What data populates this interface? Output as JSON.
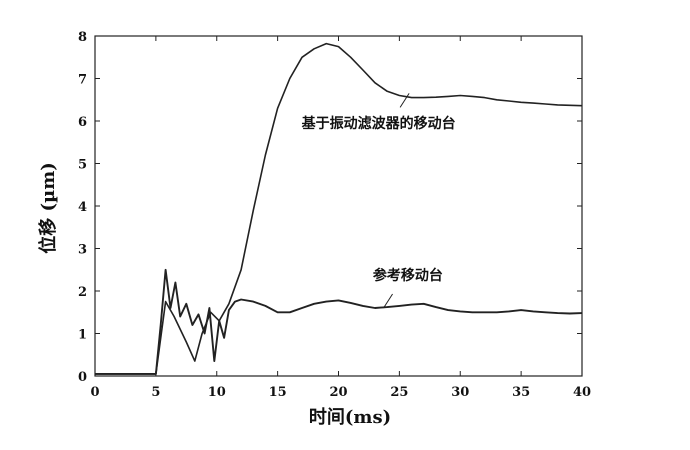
{
  "chart_data": {
    "type": "line",
    "title": "",
    "xlabel": "时间(ms)",
    "ylabel": "位移 (µm)",
    "xlim": [
      0,
      40
    ],
    "ylim": [
      0,
      8
    ],
    "xticks": [
      0,
      5,
      10,
      15,
      20,
      25,
      30,
      35,
      40
    ],
    "yticks": [
      0,
      1,
      2,
      3,
      4,
      5,
      6,
      7,
      8
    ],
    "grid": false,
    "legend": "none",
    "line_color": "#222222",
    "series": [
      {
        "name": "基于振动滤波器的移动台",
        "x": [
          0,
          5,
          5.8,
          6.5,
          7.5,
          8.2,
          8.8,
          9.5,
          10.2,
          11,
          12,
          13,
          14,
          15,
          16,
          17,
          18,
          19,
          20,
          21,
          22,
          23,
          24,
          25,
          26,
          27,
          28,
          29,
          30,
          31,
          32,
          33,
          34,
          35,
          36,
          37,
          38,
          39,
          40
        ],
        "y": [
          0.05,
          0.05,
          1.75,
          1.4,
          0.8,
          0.35,
          1.0,
          1.5,
          1.3,
          1.7,
          2.5,
          3.9,
          5.2,
          6.3,
          7.0,
          7.5,
          7.7,
          7.82,
          7.75,
          7.5,
          7.2,
          6.9,
          6.7,
          6.6,
          6.55,
          6.55,
          6.56,
          6.58,
          6.6,
          6.58,
          6.55,
          6.5,
          6.47,
          6.44,
          6.42,
          6.4,
          6.38,
          6.37,
          6.36
        ]
      },
      {
        "name": "参考移动台",
        "x": [
          0,
          5,
          5.4,
          5.8,
          6.2,
          6.6,
          7,
          7.5,
          8,
          8.5,
          9,
          9.4,
          9.8,
          10.2,
          10.6,
          11,
          11.5,
          12,
          13,
          14,
          15,
          16,
          17,
          18,
          19,
          20,
          21,
          22,
          23,
          24,
          25,
          26,
          27,
          28,
          29,
          30,
          31,
          32,
          33,
          34,
          35,
          36,
          37,
          38,
          39,
          40
        ],
        "y": [
          0.05,
          0.05,
          1.2,
          2.5,
          1.6,
          2.2,
          1.4,
          1.7,
          1.2,
          1.45,
          1.0,
          1.6,
          0.35,
          1.3,
          0.9,
          1.55,
          1.75,
          1.8,
          1.75,
          1.65,
          1.5,
          1.5,
          1.6,
          1.7,
          1.75,
          1.78,
          1.72,
          1.65,
          1.6,
          1.62,
          1.65,
          1.68,
          1.7,
          1.62,
          1.55,
          1.52,
          1.5,
          1.5,
          1.5,
          1.52,
          1.55,
          1.52,
          1.5,
          1.48,
          1.47,
          1.48
        ]
      }
    ],
    "annotations": [
      {
        "text": "基于振动滤波器的移动台",
        "x": 23.3,
        "y": 5.95,
        "point_x": 25.8,
        "point_y": 6.65
      },
      {
        "text": "参考移动台",
        "x": 25.7,
        "y": 2.38,
        "point_x": 23.7,
        "point_y": 1.6
      }
    ]
  }
}
